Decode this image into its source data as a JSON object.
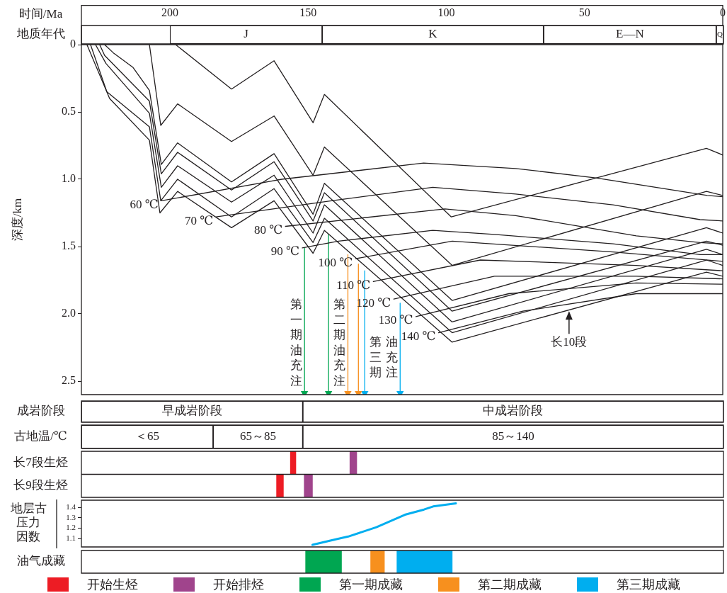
{
  "chart_data": [
    {
      "type": "line",
      "xlabel": "时间/Ma",
      "ylabel": "深度/km",
      "xlim": [
        232,
        0
      ],
      "xticks": [
        200,
        150,
        100,
        50,
        0
      ],
      "ylim": [
        2.6,
        0
      ],
      "yticks": [
        0,
        0.5,
        {
          "value": 1,
          "label": "1.0"
        },
        1.5,
        {
          "value": 2,
          "label": "2.0"
        },
        2.5
      ],
      "annotations": [
        {
          "text": "第一期油充注",
          "x": 151.3,
          "y": 1.89
        },
        {
          "text": "第二期油充注",
          "x": 135.6,
          "y": 1.89
        },
        {
          "text": "第三期",
          "x": 116.7,
          "y": 2.17
        },
        {
          "text": "油充注",
          "x": 116.7,
          "y": 2.17
        },
        {
          "text": "长10段",
          "x": 55.6,
          "y": 1.97
        }
      ],
      "series": [
        {
          "color": "#231f20",
          "x": [
            197.9,
            177.7,
            162.3,
            148.2,
            144.1,
            98.2,
            5.9,
            0
          ],
          "values": [
            0,
            0.33,
            0.12,
            0.58,
            0.37,
            1.28,
            0.77,
            0.82
          ]
        },
        {
          "color": "#231f20",
          "x": [
            207.4,
            203.3,
            197.2,
            177.7,
            162.3,
            148.2,
            144.1,
            97.9,
            5.9,
            0
          ],
          "values": [
            0,
            0.6,
            0.44,
            0.72,
            0.53,
            0.97,
            0.76,
            1.64,
            1.09,
            1.12
          ]
        },
        {
          "color": "#231f20",
          "x": [
            223.6,
            220.5,
            213.3,
            207.4,
            203.1,
            197.2,
            177.7,
            162.3,
            148.2,
            144.1,
            97.9,
            5.9,
            0
          ],
          "values": [
            0,
            0.06,
            0.17,
            0.34,
            0.89,
            0.73,
            1.02,
            0.81,
            1.26,
            1.03,
            1.9,
            1.36,
            1.4
          ]
        },
        {
          "color": "#231f20",
          "x": [
            225.4,
            223.6,
            207.4,
            203.1,
            197.2,
            177.7,
            162.3,
            148.2,
            144.1,
            97.9,
            5.9,
            0
          ],
          "values": [
            0,
            0.08,
            0.42,
            0.96,
            0.8,
            1.08,
            0.87,
            1.31,
            1.1,
            1.98,
            1.46,
            1.49
          ]
        },
        {
          "color": "#231f20",
          "x": [
            226.9,
            223.1,
            207.4,
            203.1,
            197.2,
            177.7,
            162.3,
            148.2,
            144.1,
            97.9,
            5.9,
            0
          ],
          "values": [
            0,
            0.14,
            0.51,
            1.06,
            0.9,
            1.17,
            0.97,
            1.4,
            1.19,
            2.06,
            1.52,
            1.56
          ]
        },
        {
          "color": "#231f20",
          "x": [
            228.7,
            222.8,
            207.4,
            203.3,
            197.2,
            177.7,
            162.3,
            148.2,
            144.1,
            97.9,
            5.9,
            0
          ],
          "values": [
            0,
            0.35,
            0.61,
            1.16,
            1,
            1.28,
            1.07,
            1.47,
            1.29,
            2.14,
            1.6,
            1.64
          ]
        },
        {
          "color": "#231f20",
          "x": [
            230,
            221.8,
            207.4,
            203.6,
            197.2,
            177.7,
            162.3,
            148.2,
            144.1,
            97.9,
            5.9,
            0
          ],
          "values": [
            0,
            0.4,
            0.71,
            1.25,
            1.09,
            1.36,
            1.16,
            1.55,
            1.38,
            2.21,
            1.69,
            1.72
          ]
        },
        {
          "name": "60 ℃",
          "color": "#231f20",
          "x": [
            203.1,
            159.5,
            108.2,
            74.9,
            45.9,
            5.6,
            0
          ],
          "values": [
            1.16,
            1,
            0.88,
            0.92,
            0.99,
            1.12,
            1.13
          ]
        },
        {
          "name": "70 ℃",
          "color": "#231f20",
          "x": [
            183.3,
            141.5,
            104.9,
            74.9,
            39.7,
            8.2,
            0
          ],
          "values": [
            1.28,
            1.16,
            1.06,
            1.11,
            1.19,
            1.3,
            1.31
          ]
        },
        {
          "name": "80 ℃",
          "color": "#231f20",
          "x": [
            158.2,
            100.5,
            74.9,
            31.3,
            8.2,
            0
          ],
          "values": [
            1.35,
            1.22,
            1.27,
            1.42,
            1.47,
            1.48
          ]
        },
        {
          "name": "90 ℃",
          "color": "#231f20",
          "x": [
            152.1,
            139,
            104.9,
            82.6,
            39.7,
            8.2,
            0
          ],
          "values": [
            1.51,
            1.46,
            1.38,
            1.41,
            1.48,
            1.56,
            1.56
          ]
        },
        {
          "name": "100 ℃",
          "color": "#231f20",
          "x": [
            132.8,
            97.9,
            39.7,
            0
          ],
          "values": [
            1.59,
            1.46,
            1.54,
            1.61
          ]
        },
        {
          "name": "110 ℃",
          "color": "#231f20",
          "x": [
            126.4,
            87.7,
            31.3,
            0
          ],
          "values": [
            1.76,
            1.6,
            1.64,
            1.68
          ]
        },
        {
          "name": "120 ℃",
          "color": "#231f20",
          "x": [
            119,
            82.6,
            31.3,
            0
          ],
          "values": [
            1.89,
            1.72,
            1.72,
            1.74
          ]
        },
        {
          "name": "130 ℃",
          "color": "#231f20",
          "x": [
            111,
            77.4,
            31.3,
            0
          ],
          "values": [
            2.02,
            1.85,
            1.77,
            1.78
          ]
        },
        {
          "name": "140 ℃",
          "color": "#231f20",
          "x": [
            102.8,
            72.3,
            31.3,
            0
          ],
          "values": [
            2.14,
            1.98,
            1.85,
            1.85
          ]
        },
        {
          "color": "#00a651",
          "marker": "triangle",
          "x": [
            151.3,
            151.3
          ],
          "values": [
            1.51,
            2.59
          ]
        },
        {
          "color": "#00a651",
          "marker": "triangle",
          "x": [
            142.6,
            142.6
          ],
          "values": [
            1.41,
            2.59
          ]
        },
        {
          "color": "#f7901e",
          "marker": "triangle",
          "x": [
            135.6,
            135.6
          ],
          "values": [
            1.56,
            2.59
          ]
        },
        {
          "color": "#f7901e",
          "marker": "triangle",
          "x": [
            131.8,
            131.8
          ],
          "values": [
            1.63,
            2.59
          ]
        },
        {
          "color": "#00aeef",
          "marker": "triangle",
          "x": [
            129.5,
            129.5
          ],
          "values": [
            1.68,
            2.59
          ]
        },
        {
          "color": "#00aeef",
          "marker": "triangle",
          "x": [
            116.7,
            116.7
          ],
          "values": [
            1.92,
            2.59
          ]
        }
      ]
    },
    {
      "type": "bar",
      "orientation": "horizontal",
      "categories": [
        "地质年代"
      ],
      "xlim": [
        232,
        0
      ],
      "tick_labels": "y",
      "series": [
        {
          "name": "J",
          "color": "#ffffff",
          "base": [
            145
          ],
          "values": [
            55
          ]
        },
        {
          "name": "K",
          "color": "#ffffff",
          "base": [
            65
          ],
          "values": [
            80
          ]
        },
        {
          "name": "E—N",
          "color": "#ffffff",
          "base": [
            2.6
          ],
          "values": [
            62.4
          ]
        },
        {
          "name": "Q",
          "color": "#ffffff",
          "base": [
            0
          ],
          "values": [
            2.6
          ]
        }
      ]
    },
    {
      "type": "bar",
      "orientation": "horizontal",
      "categories": [
        "成岩阶段"
      ],
      "xlim": [
        232,
        0
      ],
      "tick_labels": "y",
      "series": [
        {
          "name": "早成岩阶段",
          "color": "#ffffff",
          "base": [
            152
          ],
          "values": [
            80
          ]
        },
        {
          "name": "中成岩阶段",
          "color": "#ffffff",
          "base": [
            0
          ],
          "values": [
            152
          ]
        }
      ]
    },
    {
      "type": "bar",
      "orientation": "horizontal",
      "categories": [
        "古地温/℃"
      ],
      "xlim": [
        232,
        0
      ],
      "tick_labels": "y",
      "series": [
        {
          "name": "＜65",
          "color": "#ffffff",
          "base": [
            184.4
          ],
          "values": [
            47.6
          ]
        },
        {
          "name": "65～85",
          "color": "#ffffff",
          "base": [
            152
          ],
          "values": [
            32.4
          ]
        },
        {
          "name": "85～140",
          "color": "#ffffff",
          "base": [
            0
          ],
          "values": [
            152
          ]
        }
      ]
    },
    {
      "type": "bar",
      "orientation": "horizontal",
      "categories": [
        "长7段生烃",
        "长9段生烃"
      ],
      "xlim": [
        232,
        0
      ],
      "tick_labels": "y",
      "legend": "bottom",
      "series": [
        {
          "name": "开始生烃",
          "color": "#ed1c24",
          "base": [
            154.5,
            159
          ],
          "values": [
            2,
            2.5
          ]
        },
        {
          "name": "开始排烃",
          "color": "#a0448c",
          "base": [
            132.5,
            148.5
          ],
          "values": [
            2.5,
            3
          ]
        }
      ]
    },
    {
      "type": "line",
      "ylabel": "地层古压力因数",
      "xlim": [
        232,
        0
      ],
      "ylim": [
        1.02,
        1.47
      ],
      "yticks": [
        1.1,
        1.2,
        1.3,
        1.4
      ],
      "tick_labels": "y",
      "x": [
        148.5,
        142.3,
        135.6,
        125.4,
        115.1,
        108.2,
        104.9,
        96.7
      ],
      "series": [
        {
          "color": "#00aeef",
          "values": [
            1.04,
            1.08,
            1.12,
            1.21,
            1.33,
            1.38,
            1.41,
            1.44
          ]
        }
      ]
    },
    {
      "type": "bar",
      "orientation": "horizontal",
      "categories": [
        "油气成藏"
      ],
      "xlim": [
        232,
        0
      ],
      "tick_labels": "y",
      "legend": "bottom",
      "series": [
        {
          "name": "第一期成藏",
          "color": "#00a651",
          "base": [
            138
          ],
          "values": [
            13
          ]
        },
        {
          "name": "第二期成藏",
          "color": "#f7901e",
          "base": [
            122.5
          ],
          "values": [
            5
          ]
        },
        {
          "name": "第三期成藏",
          "color": "#00aeef",
          "base": [
            98
          ],
          "values": [
            20
          ]
        }
      ]
    }
  ]
}
